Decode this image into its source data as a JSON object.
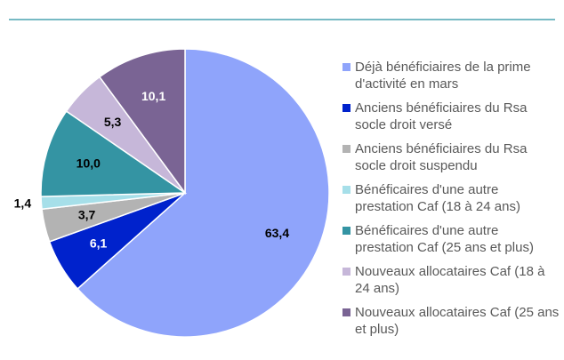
{
  "chart_data": {
    "type": "pie",
    "categories": [
      "Déjà bénéficiaires de la prime d'activité en mars",
      "Anciens bénéficiaires du Rsa socle droit versé",
      "Anciens bénéficiaires du Rsa socle droit suspendu",
      "Bénéficaires d'une autre prestation Caf (18 à 24 ans)",
      "Bénéficaires d'une autre prestation Caf (25 ans et plus)",
      "Nouveaux allocataires Caf (18 à 24 ans)",
      "Nouveaux allocataires Caf (25 ans et plus)"
    ],
    "values": [
      63.4,
      6.1,
      3.7,
      1.4,
      10.0,
      5.3,
      10.1
    ],
    "value_labels": [
      "63,4",
      "6,1",
      "3,7",
      "1,4",
      "10,0",
      "5,3",
      "10,1"
    ],
    "colors": [
      "#8fa4fb",
      "#0022cc",
      "#b3b3b3",
      "#a6dfe9",
      "#3494a3",
      "#c6b7d9",
      "#7a6494"
    ],
    "legend": "right"
  }
}
